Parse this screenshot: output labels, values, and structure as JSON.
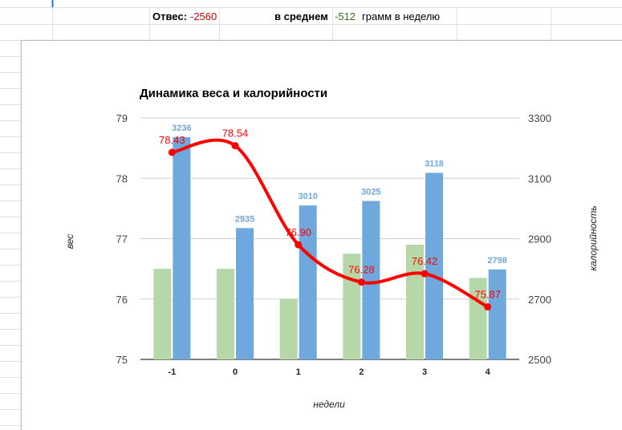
{
  "summary": {
    "deviation_label": "Отвес:",
    "deviation_value": "-2560",
    "average_label": "в среднем",
    "average_value": "-512",
    "average_unit": "грамм в неделю"
  },
  "colors": {
    "calorie_bar": "#6fa8dc",
    "secondary_bar": "#b6d7a8",
    "weight_line": "#ff0000",
    "negative_red": "#cc0000",
    "negative_green": "#38761d"
  },
  "chart_data": {
    "type": "bar",
    "title": "Динамика веса и калорийности",
    "xlabel": "недели",
    "ylabel": "вес",
    "y2label": "калорийность",
    "categories": [
      "-1",
      "0",
      "1",
      "2",
      "3",
      "4"
    ],
    "ylim": [
      75,
      79
    ],
    "yticks": [
      "75",
      "76",
      "77",
      "78",
      "79"
    ],
    "y2lim": [
      2500,
      3300
    ],
    "y2ticks": [
      "2500",
      "2700",
      "2900",
      "3100",
      "3300"
    ],
    "grid": true,
    "series": [
      {
        "type": "bar",
        "axis": "left",
        "values": [
          76.5,
          76.5,
          76.0,
          76.75,
          76.9,
          76.35
        ]
      },
      {
        "type": "bar",
        "axis": "right",
        "values": [
          3236,
          2935,
          3010,
          3025,
          3118,
          2798
        ],
        "labels": [
          "3236",
          "2935",
          "3010",
          "3025",
          "3118",
          "2798"
        ]
      },
      {
        "type": "line",
        "axis": "left",
        "smooth": true,
        "values": [
          78.43,
          78.54,
          76.9,
          76.28,
          76.42,
          75.87
        ],
        "labels": [
          "78.43",
          "78.54",
          "76.90",
          "76.28",
          "76.42",
          "75.87"
        ]
      }
    ]
  }
}
